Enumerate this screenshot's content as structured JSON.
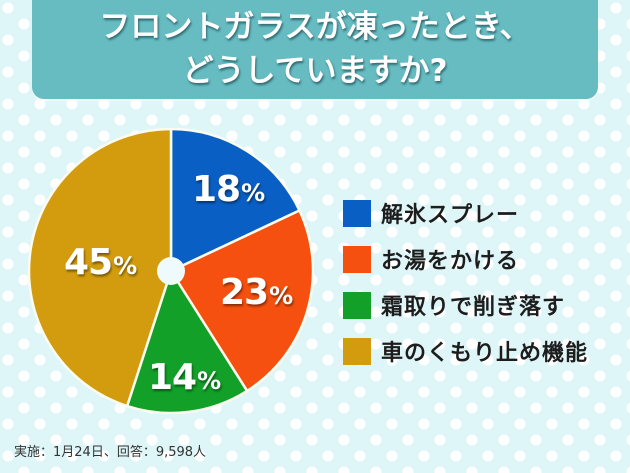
{
  "header": {
    "title_line1": "フロントガラスが凍ったとき、",
    "title_line2": "どうしていますか?"
  },
  "colors": {
    "background": "#dff6f8",
    "banner": "#66bcc1",
    "spray": "#0a5fc4",
    "hot_water": "#f5500f",
    "scraper": "#12a028",
    "defogger": "#d29c0e"
  },
  "labels": {
    "spray_num": "18",
    "hot_water_num": "23",
    "scraper_num": "14",
    "defogger_num": "45",
    "percent_sign": "%"
  },
  "legend": {
    "items": [
      {
        "label": "解氷スプレー",
        "color": "#0a5fc4"
      },
      {
        "label": "お湯をかける",
        "color": "#f5500f"
      },
      {
        "label": "霜取りで削ぎ落す",
        "color": "#12a028"
      },
      {
        "label": "車のくもり止め機能",
        "color": "#d29c0e"
      }
    ]
  },
  "footnote": "実施：1月24日、回答：9,598人",
  "chart_data": {
    "type": "pie",
    "title": "フロントガラスが凍ったとき、どうしていますか?",
    "categories": [
      "解氷スプレー",
      "お湯をかける",
      "霜取りで削ぎ落す",
      "車のくもり止め機能"
    ],
    "values": [
      18,
      23,
      14,
      45
    ],
    "unit": "%",
    "colors": [
      "#0a5fc4",
      "#f5500f",
      "#12a028",
      "#d29c0e"
    ],
    "start_angle": "12 o'clock, clockwise",
    "legend_position": "right",
    "note": "実施：1月24日、回答：9,598人"
  }
}
